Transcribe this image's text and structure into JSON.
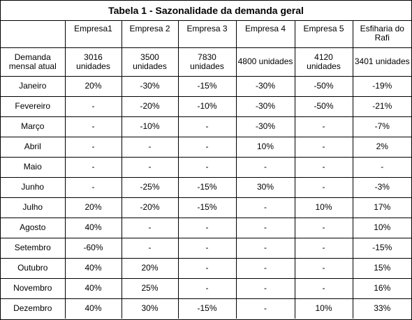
{
  "table": {
    "title": "Tabela 1 - Sazonalidade da demanda geral",
    "columns": [
      "",
      "Empresa1",
      "Empresa 2",
      "Empresa 3",
      "Empresa 4",
      "Empresa 5",
      "Esfiharia do Rafi"
    ],
    "base_row": {
      "label": "Demanda mensal atual",
      "values": [
        "3016 unidades",
        "3500 unidades",
        "7830 unidades",
        "4800 unidades",
        "4120 unidades",
        "3401 unidades"
      ]
    },
    "rows": [
      {
        "month": "Janeiro",
        "values": [
          "20%",
          "-30%",
          "-15%",
          "-30%",
          "-50%",
          "-19%"
        ]
      },
      {
        "month": "Fevereiro",
        "values": [
          "-",
          "-20%",
          "-10%",
          "-30%",
          "-50%",
          "-21%"
        ]
      },
      {
        "month": "Março",
        "values": [
          "-",
          "-10%",
          "-",
          "-30%",
          "-",
          "-7%"
        ]
      },
      {
        "month": "Abril",
        "values": [
          "-",
          "-",
          "-",
          "10%",
          "-",
          "2%"
        ]
      },
      {
        "month": "Maio",
        "values": [
          "-",
          "-",
          "-",
          "-",
          "-",
          "-"
        ]
      },
      {
        "month": "Junho",
        "values": [
          "-",
          "-25%",
          "-15%",
          "30%",
          "-",
          "-3%"
        ]
      },
      {
        "month": "Julho",
        "values": [
          "20%",
          "-20%",
          "-15%",
          "-",
          "10%",
          "17%"
        ]
      },
      {
        "month": "Agosto",
        "values": [
          "40%",
          "-",
          "-",
          "-",
          "-",
          "10%"
        ]
      },
      {
        "month": "Setembro",
        "values": [
          "-60%",
          "-",
          "-",
          "-",
          "-",
          "-15%"
        ]
      },
      {
        "month": "Outubro",
        "values": [
          "40%",
          "20%",
          "-",
          "-",
          "-",
          "15%"
        ]
      },
      {
        "month": "Novembro",
        "values": [
          "40%",
          "25%",
          "-",
          "-",
          "-",
          "16%"
        ]
      },
      {
        "month": "Dezembro",
        "values": [
          "40%",
          "30%",
          "-15%",
          "-",
          "10%",
          "33%"
        ]
      }
    ]
  }
}
